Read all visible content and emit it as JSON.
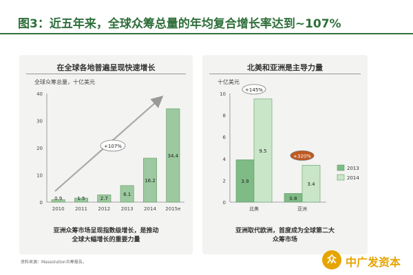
{
  "title": "图3：近五年来，全球众筹总量的年均复合增长率达到~107%",
  "chart_data": [
    {
      "type": "bar",
      "title": "在全球各地普遍呈现快速增长",
      "ylabel": "全球众筹总量，十亿美元",
      "categories": [
        "2010",
        "2011",
        "2012",
        "2013",
        "2014",
        "2015e"
      ],
      "values": [
        0.9,
        1.5,
        2.7,
        6.1,
        16.2,
        34.4
      ],
      "value_labels": [
        "0.9",
        "1.5",
        "2.7",
        "6.1",
        "16.2",
        "34.4"
      ],
      "yticks": [
        "0",
        "10",
        "20",
        "30",
        "40"
      ],
      "ylim": [
        0,
        40
      ],
      "annotation": "+107%",
      "caption": "亚洲众筹市场呈现指数级增长，是推动全球大幅增长的重要力量",
      "caption_lines": [
        "亚洲众筹市场呈现指数级增长，是推动",
        "全球大幅增长的重要力量"
      ],
      "color": "#9cc99f"
    },
    {
      "type": "bar",
      "title": "北美和亚洲是主导力量",
      "ylabel": "十亿美元",
      "categories": [
        "北美",
        "亚洲"
      ],
      "series": [
        {
          "name": "2013",
          "values": [
            3.9,
            0.8
          ],
          "color": "#7fbb86"
        },
        {
          "name": "2014",
          "values": [
            9.5,
            3.4
          ],
          "color": "#c9e6c9"
        }
      ],
      "yticks": [
        "0",
        "2",
        "4",
        "6",
        "8",
        "10"
      ],
      "ylim": [
        0,
        10
      ],
      "annotations": [
        "+145%",
        "+320%"
      ],
      "legend": "right",
      "caption": "亚洲取代欧洲，首度成为全球第二大众筹市场",
      "caption_lines": [
        "亚洲取代欧洲，首度成为全球第二大",
        "众筹市场"
      ]
    }
  ],
  "footnote": "资料来源：Massolution众筹报告。",
  "logo": {
    "mark": "众",
    "text": "中广发资本",
    "color": "#e6a400"
  }
}
